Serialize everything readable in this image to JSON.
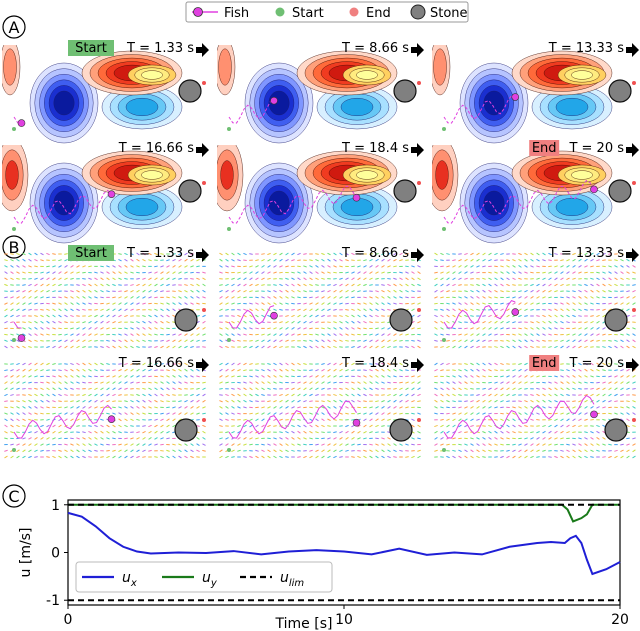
{
  "legend": {
    "items": [
      {
        "label": "Fish",
        "marker": "circle-line",
        "color": "#e040e0"
      },
      {
        "label": "Start",
        "marker": "circle",
        "color": "#6fbf73"
      },
      {
        "label": "End",
        "marker": "circle",
        "color": "#f08080"
      },
      {
        "label": "Stone",
        "marker": "circle",
        "color": "#808080"
      }
    ]
  },
  "panels": {
    "A": {
      "letter": "A",
      "kind": "vorticity-contours"
    },
    "B": {
      "letter": "B",
      "kind": "velocity-field"
    },
    "C": {
      "letter": "C",
      "kind": "velocity-time-series"
    }
  },
  "frames": [
    {
      "time_label": "T = 1.33 s",
      "badge": "Start",
      "badge_color": "#6fbf73",
      "fish_progress": 0.02
    },
    {
      "time_label": "T = 8.66 s",
      "badge": "",
      "badge_color": "",
      "fish_progress": 0.3
    },
    {
      "time_label": "T = 13.33 s",
      "badge": "",
      "badge_color": "",
      "fish_progress": 0.48
    },
    {
      "time_label": "T = 16.66 s",
      "badge": "",
      "badge_color": "",
      "fish_progress": 0.64
    },
    {
      "time_label": "T = 18.4 s",
      "badge": "",
      "badge_color": "",
      "fish_progress": 0.85
    },
    {
      "time_label": "T = 20 s",
      "badge": "End",
      "badge_color": "#f08080",
      "fish_progress": 1.0
    }
  ],
  "chart_data": {
    "type": "line",
    "xlabel": "Time [s]",
    "ylabel": "u [m/s]",
    "xlim": [
      0,
      20
    ],
    "ylim": [
      -1.1,
      1.1
    ],
    "xticks": [
      0,
      10,
      20
    ],
    "yticks": [
      -1,
      0,
      1
    ],
    "legend_position": "bottom-left",
    "series": [
      {
        "name": "u_x",
        "label_main": "u",
        "label_sub": "x",
        "color": "#1f1fd6",
        "dash": "solid",
        "x": [
          0,
          0.5,
          1,
          1.5,
          2,
          2.5,
          3,
          3.5,
          4,
          5,
          6,
          7,
          8,
          9,
          10,
          11,
          12,
          13,
          14,
          15,
          16,
          17,
          17.5,
          18,
          18.2,
          18.4,
          18.6,
          18.8,
          19,
          19.5,
          20
        ],
        "y": [
          0.83,
          0.75,
          0.55,
          0.3,
          0.12,
          0.02,
          -0.02,
          -0.01,
          0.0,
          -0.01,
          0.03,
          -0.04,
          0.02,
          0.05,
          0.02,
          -0.04,
          0.08,
          -0.05,
          0.0,
          -0.04,
          0.12,
          0.2,
          0.22,
          0.2,
          0.3,
          0.35,
          0.2,
          -0.15,
          -0.45,
          -0.35,
          -0.2
        ]
      },
      {
        "name": "u_y",
        "label_main": "u",
        "label_sub": "y",
        "color": "#1a7a1a",
        "dash": "solid",
        "x": [
          0,
          17.9,
          18.1,
          18.3,
          18.6,
          18.8,
          19,
          20
        ],
        "y": [
          1.0,
          1.0,
          0.9,
          0.65,
          0.72,
          0.8,
          1.0,
          1.0
        ]
      },
      {
        "name": "u_lim",
        "label_main": "u",
        "label_sub": "lim",
        "color": "#000000",
        "dash": "dashed",
        "x": [
          0,
          20
        ],
        "y": [
          1.0,
          1.0
        ]
      },
      {
        "name": "u_lim_neg",
        "label_main": "",
        "label_sub": "",
        "color": "#000000",
        "dash": "dashed",
        "x": [
          0,
          20
        ],
        "y": [
          -1.0,
          -1.0
        ]
      }
    ]
  }
}
